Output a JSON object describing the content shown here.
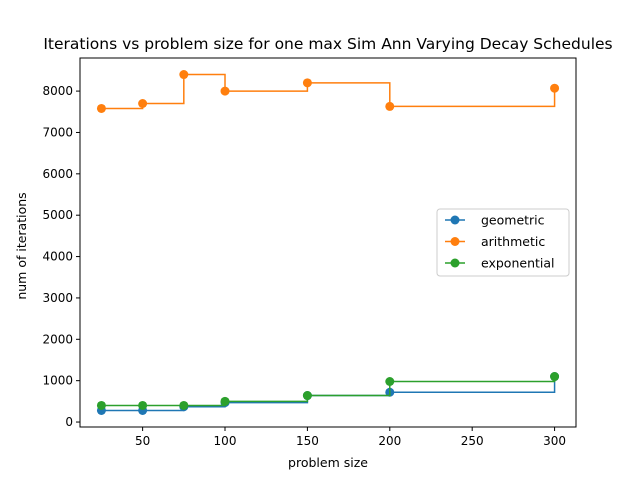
{
  "chart_data": {
    "type": "line",
    "title": "Iterations vs problem size for one max Sim Ann Varying Decay Schedules",
    "xlabel": "problem size",
    "ylabel": "num of iterations",
    "xlim": [
      12,
      313
    ],
    "ylim": [
      -120,
      8800
    ],
    "xticks": [
      50,
      100,
      150,
      200,
      250,
      300
    ],
    "yticks": [
      0,
      1000,
      2000,
      3000,
      4000,
      5000,
      6000,
      7000,
      8000
    ],
    "grid": false,
    "step": "post",
    "legend_position": "center-right",
    "x": [
      25,
      50,
      75,
      100,
      150,
      200,
      300
    ],
    "series": [
      {
        "name": "geometric",
        "color": "#1f77b4",
        "values": [
          280,
          280,
          370,
          470,
          640,
          720,
          1100
        ]
      },
      {
        "name": "arithmetic",
        "color": "#ff7f0e",
        "values": [
          7580,
          7700,
          8400,
          8000,
          8200,
          7630,
          8070
        ]
      },
      {
        "name": "exponential",
        "color": "#2ca02c",
        "values": [
          400,
          400,
          400,
          500,
          640,
          980,
          1100
        ]
      }
    ]
  }
}
